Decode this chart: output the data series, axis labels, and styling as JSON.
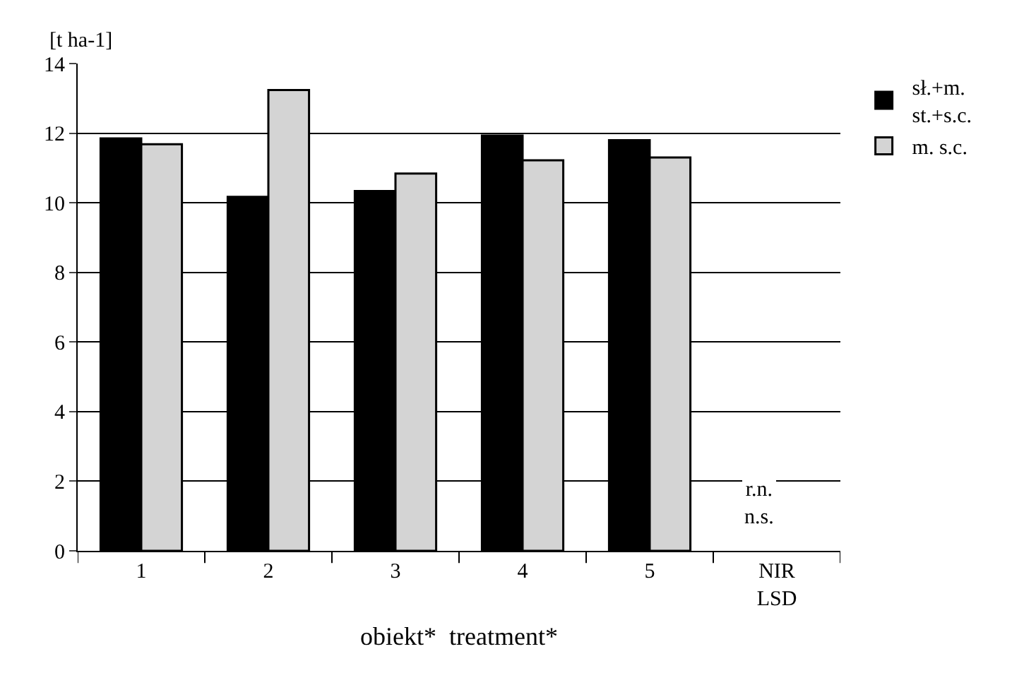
{
  "chart_data": {
    "type": "bar",
    "ylabel": "[t ha-1]",
    "xlabel": "obiekt*  treatment*",
    "categories": [
      "1",
      "2",
      "3",
      "4",
      "5",
      "NIR\nLSD"
    ],
    "series": [
      {
        "name": "sł.+m.\nst.+s.c.",
        "color": "#000000",
        "values": [
          11.85,
          10.17,
          10.34,
          11.93,
          11.8,
          null
        ]
      },
      {
        "name": "m. s.c.",
        "color": "#d4d4d4",
        "values": [
          11.68,
          13.24,
          10.84,
          11.22,
          11.3,
          null
        ]
      }
    ],
    "annotations": [
      "r.n.\nn.s."
    ],
    "ylim": [
      0,
      14
    ],
    "yticks": [
      0,
      2,
      4,
      6,
      8,
      10,
      12,
      14
    ],
    "grid": "y",
    "legend": "top right"
  }
}
